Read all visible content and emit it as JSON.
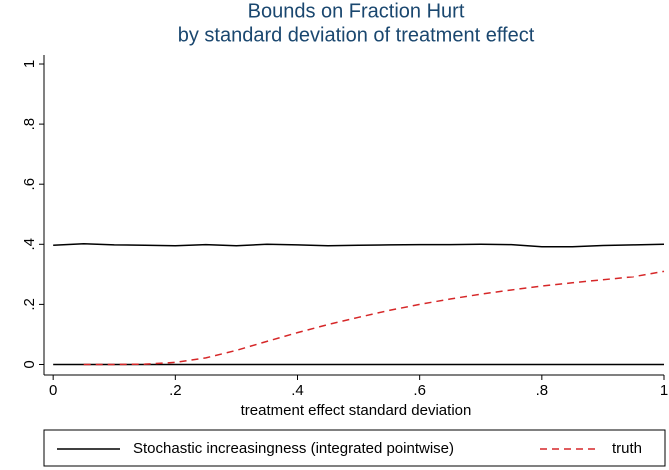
{
  "chart_data": {
    "type": "line",
    "title": [
      "Bounds on Fraction Hurt",
      "by standard deviation of treatment effect"
    ],
    "xlabel": "treatment effect standard deviation",
    "xlim": [
      -0.015,
      1
    ],
    "ylim": [
      -0.035,
      1.03
    ],
    "xticks": [
      0,
      {
        "value": 0.2,
        "label": ".2"
      },
      {
        "value": 0.4,
        "label": ".4"
      },
      {
        "value": 0.6,
        "label": ".6"
      },
      {
        "value": 0.8,
        "label": ".8"
      },
      1
    ],
    "yticks": [
      0,
      {
        "value": 0.2,
        "label": ".2"
      },
      {
        "value": 0.4,
        "label": ".4"
      },
      {
        "value": 0.6,
        "label": ".6"
      },
      {
        "value": 0.8,
        "label": ".8"
      },
      1
    ],
    "legend": "bottom",
    "series": [
      {
        "name": "Stochastic increasingness (integrated pointwise)",
        "color": "#000000",
        "dash": "solid",
        "x": [
          0,
          0.05,
          0.1,
          0.15,
          0.2,
          0.25,
          0.3,
          0.35,
          0.4,
          0.45,
          0.5,
          0.55,
          0.6,
          0.65,
          0.7,
          0.75,
          0.8,
          0.85,
          0.9,
          0.95,
          1
        ],
        "values": [
          0.397,
          0.402,
          0.398,
          0.397,
          0.395,
          0.399,
          0.395,
          0.4,
          0.398,
          0.395,
          0.397,
          0.398,
          0.399,
          0.399,
          0.4,
          0.399,
          0.392,
          0.392,
          0.396,
          0.398,
          0.4
        ],
        "lower": [
          0,
          0,
          0,
          0,
          0,
          0,
          0,
          0,
          0,
          0,
          0,
          0,
          0,
          0,
          0,
          0,
          0,
          0,
          0,
          0,
          0
        ]
      },
      {
        "name": "truth",
        "color": "#d62728",
        "dash": "dashed",
        "x": [
          0.05,
          0.1,
          0.15,
          0.2,
          0.25,
          0.3,
          0.35,
          0.4,
          0.45,
          0.5,
          0.55,
          0.6,
          0.65,
          0.7,
          0.75,
          0.8,
          0.85,
          0.9,
          0.95,
          1
        ],
        "values": [
          0,
          0,
          0.001,
          0.007,
          0.022,
          0.047,
          0.077,
          0.106,
          0.133,
          0.157,
          0.18,
          0.2,
          0.218,
          0.234,
          0.248,
          0.261,
          0.272,
          0.282,
          0.292,
          0.31
        ]
      }
    ]
  }
}
